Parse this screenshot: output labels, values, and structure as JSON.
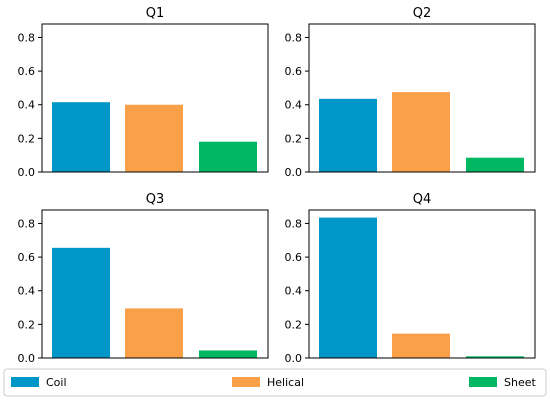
{
  "chart_data": {
    "type": "bar",
    "categories": [
      "Coil",
      "Helical",
      "Sheet"
    ],
    "colors": {
      "Coil": "#0096c8",
      "Helical": "#f9a049",
      "Sheet": "#00b862"
    },
    "ylim": [
      0,
      0.88
    ],
    "yticks": [
      "0.0",
      "0.2",
      "0.4",
      "0.6",
      "0.8"
    ],
    "grid": false,
    "legend_placement": "bottom",
    "panels": [
      {
        "title": "Q1",
        "values": [
          0.415,
          0.4,
          0.18
        ]
      },
      {
        "title": "Q2",
        "values": [
          0.435,
          0.475,
          0.085
        ]
      },
      {
        "title": "Q3",
        "values": [
          0.655,
          0.295,
          0.045
        ]
      },
      {
        "title": "Q4",
        "values": [
          0.835,
          0.145,
          0.01
        ]
      }
    ]
  }
}
